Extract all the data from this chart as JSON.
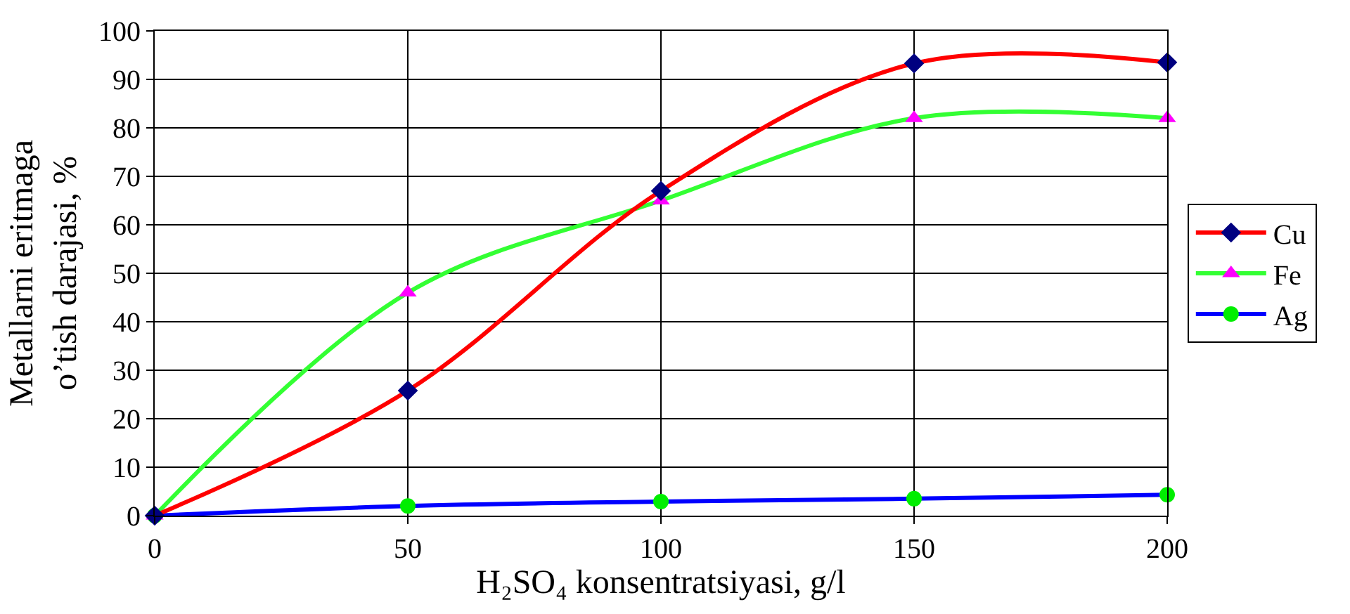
{
  "chart_data": {
    "type": "line",
    "xlabel": "H₂SO₄ konsentratsiyasi, g/l",
    "ylabel": "Metallarni eritmaga\no’tish darajasi, %",
    "x": [
      0,
      50,
      100,
      150,
      200
    ],
    "series": [
      {
        "name": "Cu",
        "color": "#ff0000",
        "marker": "diamond",
        "colors": [
          "#000080",
          "#000080",
          "#000080",
          "#000080",
          "#000080"
        ],
        "values": [
          0,
          25.8,
          67,
          93.3,
          93.5
        ]
      },
      {
        "name": "Fe",
        "color": "#33ff33",
        "marker": "triangle",
        "colors": [
          "#ff00ff",
          "#ff00ff",
          "#ff00ff",
          "#ff00ff",
          "#ff00ff"
        ],
        "values": [
          0,
          46,
          65,
          82,
          82
        ]
      },
      {
        "name": "Ag",
        "color": "#0000ff",
        "marker": "circle",
        "colors": [
          "#00ee00",
          "#00ee00",
          "#00ee00",
          "#00ee00",
          "#00ee00"
        ],
        "values": [
          0,
          2,
          2.9,
          3.5,
          4.3
        ]
      }
    ],
    "xlim": [
      0,
      200
    ],
    "xticks": [
      0,
      50,
      100,
      150,
      200
    ],
    "ylim": [
      0,
      100
    ],
    "yticks": [
      0,
      10,
      20,
      30,
      40,
      50,
      60,
      70,
      80,
      90,
      100
    ],
    "grid": true,
    "legend": "right",
    "line_style": "solid"
  }
}
